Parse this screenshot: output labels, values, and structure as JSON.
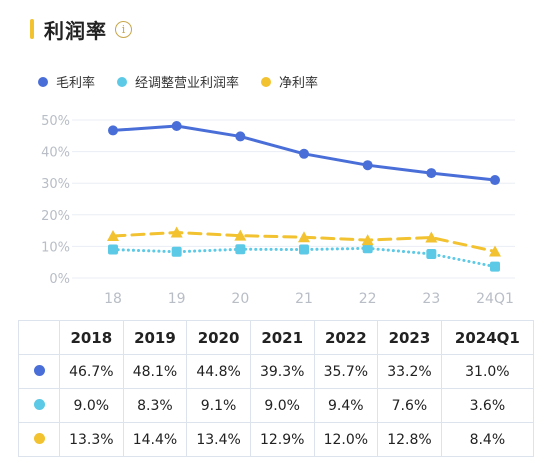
{
  "header": {
    "title": "利润率",
    "info_icon": "i"
  },
  "colors": {
    "gross": "#4a6ed8",
    "adj": "#5cc9e6",
    "net": "#f2c230",
    "grid": "#eaeef4",
    "axis_text": "#b8bdc6"
  },
  "chart_data": {
    "type": "line",
    "x": [
      "18",
      "19",
      "20",
      "21",
      "22",
      "23",
      "24Q1"
    ],
    "ylim": [
      0,
      50
    ],
    "yticks": [
      "0%",
      "10%",
      "20%",
      "30%",
      "40%",
      "50%"
    ],
    "series": [
      {
        "name": "毛利率",
        "values": [
          46.7,
          48.1,
          44.8,
          39.3,
          35.7,
          33.2,
          31.0
        ],
        "style": "solid",
        "color": "#4a6ed8"
      },
      {
        "name": "经调整营业利润率",
        "values": [
          9.0,
          8.3,
          9.1,
          9.0,
          9.4,
          7.6,
          3.6
        ],
        "style": "dotted",
        "color": "#5cc9e6"
      },
      {
        "name": "净利率",
        "values": [
          13.3,
          14.4,
          13.4,
          12.9,
          12.0,
          12.8,
          8.4
        ],
        "style": "dashed",
        "color": "#f2c230"
      }
    ],
    "legend": "top-left",
    "grid": true
  },
  "table": {
    "headers": [
      "2018",
      "2019",
      "2020",
      "2021",
      "2022",
      "2023",
      "2024Q1"
    ],
    "rows": [
      {
        "marker": "gross",
        "cells": [
          "46.7%",
          "48.1%",
          "44.8%",
          "39.3%",
          "35.7%",
          "33.2%",
          "31.0%"
        ]
      },
      {
        "marker": "adj",
        "cells": [
          "9.0%",
          "8.3%",
          "9.1%",
          "9.0%",
          "9.4%",
          "7.6%",
          "3.6%"
        ]
      },
      {
        "marker": "net",
        "cells": [
          "13.3%",
          "14.4%",
          "13.4%",
          "12.9%",
          "12.0%",
          "12.8%",
          "8.4%"
        ]
      }
    ]
  }
}
